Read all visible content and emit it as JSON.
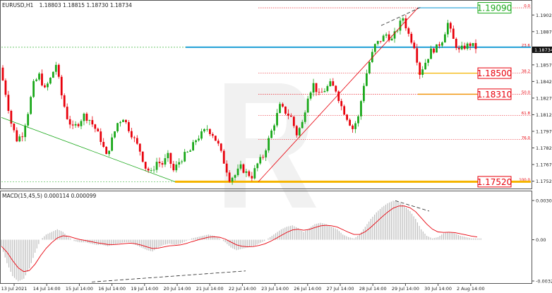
{
  "header": {
    "symbol": "EURUSD,H1",
    "ohlc": "1.18803 1.18815 1.18730 1.18734"
  },
  "macd": {
    "title": "MACD(15,45,5) 0.000114 0.000099",
    "axis_labels": [
      "0.003016",
      "0.00",
      "-0.003283"
    ],
    "histogram_color": "#bdbdbd",
    "signal_color": "#e8000b"
  },
  "current_price_label": "1.18734",
  "colors": {
    "bull": "#1aa81a",
    "bear": "#e8000b",
    "fib": "#e8000b",
    "level_1": "#1f9fd6",
    "level_2": "#f5b400",
    "level_3": "#f09000"
  },
  "chart_data": {
    "type": "candlestick",
    "y_axis_ticks": [
      "1.19025",
      "1.18875",
      "1.18725",
      "1.18575",
      "1.18425",
      "1.18275",
      "1.18125",
      "1.17975",
      "1.17825",
      "1.17675",
      "1.17525"
    ],
    "ylim": [
      1.17465,
      1.19135
    ],
    "x_axis_labels": [
      "13 Jul 2021",
      "14 Jul 14:00",
      "15 Jul 14:00",
      "16 Jul 14:00",
      "19 Jul 14:00",
      "20 Jul 14:00",
      "21 Jul 14:00",
      "22 Jul 14:00",
      "23 Jul 14:00",
      "26 Jul 14:00",
      "27 Jul 14:00",
      "28 Jul 14:00",
      "29 Jul 14:00",
      "30 Jul 14:00",
      "2 Aug 14:00"
    ],
    "price_path": [
      1.1855,
      1.1832,
      1.1805,
      1.179,
      1.1795,
      1.1815,
      1.184,
      1.1848,
      1.1835,
      1.1845,
      1.1858,
      1.183,
      1.181,
      1.18,
      1.1805,
      1.1812,
      1.1808,
      1.18,
      1.179,
      1.1775,
      1.179,
      1.1805,
      1.181,
      1.18,
      1.179,
      1.178,
      1.1765,
      1.176,
      1.177,
      1.1768,
      1.1775,
      1.1762,
      1.177,
      1.1776,
      1.178,
      1.179,
      1.1795,
      1.18,
      1.1795,
      1.1785,
      1.177,
      1.1755,
      1.1758,
      1.1765,
      1.176,
      1.1757,
      1.1768,
      1.1775,
      1.179,
      1.1805,
      1.182,
      1.1815,
      1.181,
      1.1795,
      1.1805,
      1.183,
      1.184,
      1.183,
      1.1835,
      1.184,
      1.1835,
      1.182,
      1.181,
      1.18,
      1.181,
      1.184,
      1.186,
      1.1875,
      1.188,
      1.1885,
      1.188,
      1.189,
      1.19,
      1.1885,
      1.1875,
      1.185,
      1.186,
      1.187,
      1.1873,
      1.188,
      1.1895,
      1.188,
      1.187,
      1.1874,
      1.1876,
      1.1873
    ],
    "fib_levels": [
      {
        "ratio": "0.0",
        "price": 1.1909
      },
      {
        "ratio": "23.6",
        "price": 1.18734
      },
      {
        "ratio": "38.2",
        "price": 1.185
      },
      {
        "ratio": "50.0",
        "price": 1.1831
      },
      {
        "ratio": "61.8",
        "price": 1.1812
      },
      {
        "ratio": "76.0",
        "price": 1.179
      },
      {
        "ratio": "100.0",
        "price": 1.1752
      }
    ],
    "key_levels": [
      {
        "label": "1.19090",
        "price": 1.1909,
        "style": "green-box"
      },
      {
        "label": "1.18500",
        "price": 1.185,
        "style": "red-box"
      },
      {
        "label": "1.18310",
        "price": 1.1831,
        "style": "red-box"
      },
      {
        "label": "1.17520",
        "price": 1.1752,
        "style": "red-box"
      }
    ],
    "macd_values": [
      -0.0005,
      -0.0018,
      -0.0028,
      -0.0032,
      -0.003,
      -0.0022,
      -0.001,
      0.0,
      0.0004,
      0.0006,
      0.0008,
      0.0006,
      0.0002,
      -0.0001,
      -0.0002,
      -0.0002,
      -0.0003,
      -0.0004,
      -0.0004,
      -0.0005,
      -0.0004,
      -0.0003,
      -0.0002,
      -0.0002,
      -0.0004,
      -0.0006,
      -0.0008,
      -0.0009,
      -0.0006,
      -0.0004,
      -0.0003,
      -0.0004,
      -0.0003,
      -0.0001,
      0.0001,
      0.0002,
      0.0003,
      0.0004,
      0.0003,
      0.0001,
      -0.0002,
      -0.0006,
      -0.0008,
      -0.0007,
      -0.0006,
      -0.0005,
      -0.0003,
      -0.0001,
      0.0002,
      0.0005,
      0.0008,
      0.001,
      0.0011,
      0.0009,
      0.0006,
      0.0009,
      0.0012,
      0.0013,
      0.0012,
      0.001,
      0.0008,
      0.0004,
      0.0002,
      0.0001,
      0.0004,
      0.001,
      0.0016,
      0.0021,
      0.0025,
      0.0028,
      0.003,
      0.0029,
      0.0026,
      0.0022,
      0.0016,
      0.0008,
      0.0003,
      0.0001,
      0.0002,
      0.0005,
      0.0006,
      0.0005,
      0.0003,
      0.0002,
      0.0001,
      0.0001
    ],
    "macd_ylim": [
      -0.003283,
      0.003016
    ]
  }
}
